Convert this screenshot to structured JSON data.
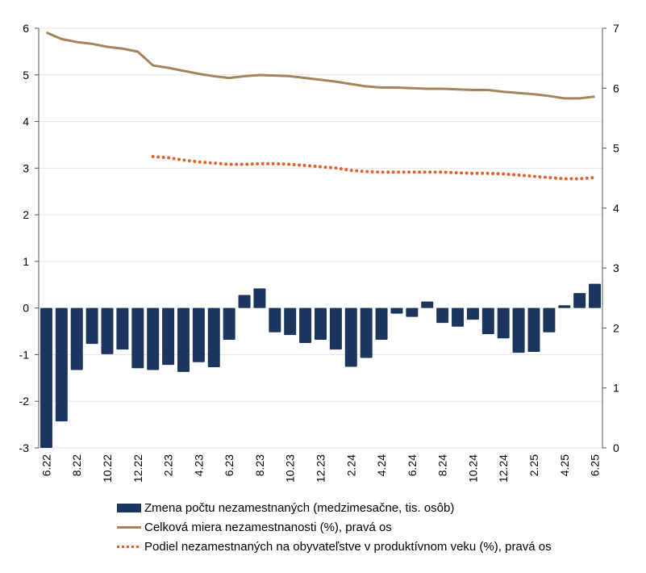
{
  "chart_data": {
    "type": "bar+line",
    "x": [
      "6.22",
      "7.22",
      "8.22",
      "9.22",
      "10.22",
      "11.22",
      "12.22",
      "1.23",
      "2.23",
      "3.23",
      "4.23",
      "5.23",
      "6.23",
      "7.23",
      "8.23",
      "9.23",
      "10.23",
      "11.23",
      "12.23",
      "1.24",
      "2.24",
      "3.24",
      "4.24",
      "5.24",
      "6.24",
      "7.24",
      "8.24",
      "9.24",
      "10.24",
      "11.24",
      "12.24",
      "1.25",
      "2.25",
      "3.25",
      "4.25",
      "5.25",
      "6.25"
    ],
    "tick_labels": [
      "6.22",
      "8.22",
      "10.22",
      "12.22",
      "2.23",
      "4.23",
      "6.23",
      "8.23",
      "10.23",
      "12.23",
      "2.24",
      "4.24",
      "6.24",
      "8.24",
      "10.24",
      "12.24",
      "2.25",
      "4.25",
      "6.25"
    ],
    "left_axis": {
      "ylim": [
        -3,
        6
      ],
      "ticks": [
        "-3",
        "-2",
        "-1",
        "0",
        "1",
        "2",
        "3",
        "4",
        "5",
        "6"
      ]
    },
    "right_axis": {
      "ylim": [
        0,
        7
      ],
      "ticks": [
        "0",
        "1",
        "2",
        "3",
        "4",
        "5",
        "6",
        "7"
      ]
    },
    "grid": true,
    "legend_placement": "bottom",
    "series": [
      {
        "name": "Zmena počtu nezamestnaných (medzimesačne, tis. osôb)",
        "type": "bar",
        "axis": "left",
        "color": "#1c355e",
        "values": [
          -3.0,
          -2.43,
          -1.33,
          -0.77,
          -0.99,
          -0.89,
          -1.29,
          -1.33,
          -1.22,
          -1.37,
          -1.16,
          -1.27,
          -0.68,
          0.28,
          0.42,
          -0.52,
          -0.58,
          -0.75,
          -0.68,
          -0.89,
          -1.26,
          -1.07,
          -0.68,
          -0.12,
          -0.19,
          0.14,
          -0.32,
          -0.4,
          -0.25,
          -0.56,
          -0.65,
          -0.96,
          -0.94,
          -0.52,
          0.06,
          0.32,
          0.52
        ]
      },
      {
        "name": "Celková miera nezamestnanosti (%), pravá os",
        "type": "line",
        "axis": "right",
        "color": "#a6845a",
        "values": [
          6.93,
          6.82,
          6.77,
          6.74,
          6.69,
          6.66,
          6.61,
          6.38,
          6.34,
          6.29,
          6.24,
          6.2,
          6.17,
          6.2,
          6.22,
          6.21,
          6.2,
          6.17,
          6.14,
          6.11,
          6.07,
          6.03,
          6.01,
          6.01,
          6.0,
          5.99,
          5.99,
          5.98,
          5.97,
          5.97,
          5.94,
          5.92,
          5.9,
          5.87,
          5.83,
          5.83,
          5.86
        ]
      },
      {
        "name": "Podiel nezamestnaných na obyvateľstve v produktívnom veku (%), pravá os",
        "type": "line-dotted",
        "axis": "right",
        "color": "#e0622a",
        "values": [
          null,
          null,
          null,
          null,
          null,
          null,
          null,
          4.86,
          4.84,
          4.8,
          4.77,
          4.75,
          4.73,
          4.73,
          4.74,
          4.74,
          4.73,
          4.71,
          4.69,
          4.67,
          4.63,
          4.61,
          4.6,
          4.6,
          4.6,
          4.6,
          4.6,
          4.59,
          4.58,
          4.58,
          4.57,
          4.55,
          4.53,
          4.51,
          4.49,
          4.49,
          4.51
        ]
      }
    ]
  }
}
